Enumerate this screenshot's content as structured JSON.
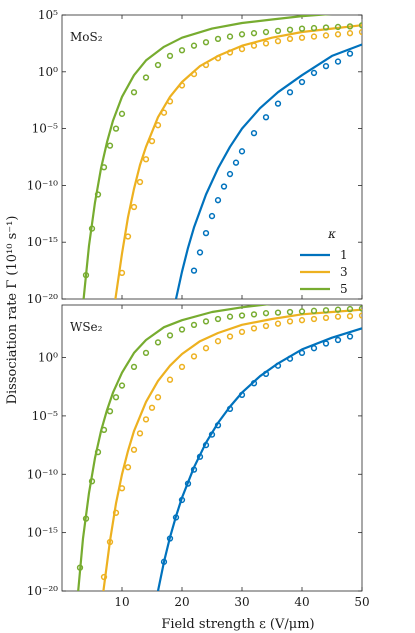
{
  "figure": {
    "ylabel": "Dissociation rate Γ (10¹⁰ s⁻¹)",
    "xlabel": "Field strength ε (V/μm)"
  },
  "chart_data": [
    {
      "type": "line",
      "panel_label": "MoS₂",
      "xlim": [
        0,
        50
      ],
      "ylim_log10": [
        -20,
        5
      ],
      "y_scale": "log",
      "x_ticks": [
        10,
        20,
        30,
        40,
        50
      ],
      "y_ticks": [
        {
          "exp": 5,
          "label": "10⁵"
        },
        {
          "exp": 0,
          "label": "10⁰"
        },
        {
          "exp": -5,
          "label": "10⁻⁵"
        },
        {
          "exp": -10,
          "label": "10⁻¹⁰"
        },
        {
          "exp": -15,
          "label": "10⁻¹⁵"
        },
        {
          "exp": -20,
          "label": "10⁻²⁰"
        }
      ],
      "legend": {
        "title": "κ",
        "placement": "lower-right",
        "entries": [
          "1",
          "3",
          "5"
        ]
      },
      "series": [
        {
          "name": "1",
          "color": "#0072bd",
          "line": {
            "x": [
              19.0,
              20,
              21,
              22,
              24,
              26,
              28,
              30,
              33,
              36,
              40,
              45,
              50
            ],
            "log10y": [
              -20.0,
              -17.6,
              -15.5,
              -13.7,
              -10.8,
              -8.5,
              -6.6,
              -5.0,
              -3.2,
              -1.8,
              -0.3,
              1.4,
              2.4
            ]
          },
          "points": {
            "x": [
              22,
              23,
              24,
              25,
              26,
              27,
              28,
              29,
              30,
              32,
              34,
              36,
              38,
              40,
              42,
              44,
              46,
              48
            ],
            "log10y": [
              -17.5,
              -15.9,
              -14.2,
              -12.7,
              -11.3,
              -10.1,
              -9.0,
              -8.0,
              -7.0,
              -5.4,
              -4.0,
              -2.8,
              -1.8,
              -0.9,
              -0.1,
              0.5,
              0.9,
              1.6
            ]
          }
        },
        {
          "name": "3",
          "color": "#edb120",
          "line": {
            "x": [
              8.9,
              10,
              11,
              12,
              13,
              14,
              16,
              18,
              20,
              23,
              26,
              30,
              35,
              40,
              45,
              50
            ],
            "log10y": [
              -20.0,
              -16.0,
              -12.8,
              -10.3,
              -8.2,
              -6.6,
              -4.0,
              -2.2,
              -0.9,
              0.5,
              1.4,
              2.3,
              3.0,
              3.5,
              3.8,
              4.1
            ]
          },
          "points": {
            "x": [
              10,
              11,
              12,
              13,
              14,
              15,
              16,
              17,
              18,
              20,
              22,
              24,
              26,
              28,
              30,
              32,
              34,
              36,
              38,
              40,
              42,
              44,
              46,
              48,
              50
            ],
            "log10y": [
              -17.7,
              -14.5,
              -11.9,
              -9.7,
              -7.7,
              -6.1,
              -4.7,
              -3.6,
              -2.6,
              -1.2,
              -0.2,
              0.6,
              1.2,
              1.7,
              2.0,
              2.3,
              2.5,
              2.7,
              2.9,
              3.0,
              3.1,
              3.2,
              3.3,
              3.4,
              3.5
            ]
          }
        },
        {
          "name": "5",
          "color": "#77ac30",
          "line": {
            "x": [
              3.6,
              4.5,
              5.5,
              6.5,
              7.5,
              8.5,
              10,
              12,
              14,
              17,
              20,
              25,
              30,
              35,
              40,
              45,
              50
            ],
            "log10y": [
              -20.0,
              -15.3,
              -11.5,
              -8.5,
              -6.2,
              -4.3,
              -2.2,
              -0.3,
              1.0,
              2.2,
              3.0,
              3.8,
              4.3,
              4.6,
              4.9,
              5.1,
              5.3
            ]
          },
          "points": {
            "x": [
              4,
              5,
              6,
              7,
              8,
              9,
              10,
              12,
              14,
              16,
              18,
              20,
              22,
              24,
              26,
              28,
              30,
              32,
              34,
              36,
              38,
              40,
              42,
              44,
              46,
              48,
              50
            ],
            "log10y": [
              -17.9,
              -13.8,
              -10.8,
              -8.4,
              -6.5,
              -5.0,
              -3.7,
              -1.8,
              -0.5,
              0.6,
              1.4,
              1.9,
              2.3,
              2.6,
              2.9,
              3.1,
              3.3,
              3.4,
              3.5,
              3.6,
              3.7,
              3.8,
              3.85,
              3.9,
              3.95,
              4.0,
              4.1
            ]
          }
        }
      ]
    },
    {
      "type": "line",
      "panel_label": "WSe₂",
      "xlim": [
        0,
        50
      ],
      "ylim_log10": [
        -20,
        4.5
      ],
      "y_scale": "log",
      "x_ticks": [
        10,
        20,
        30,
        40,
        50
      ],
      "x_tick_labels": [
        "10",
        "20",
        "30",
        "40",
        "50"
      ],
      "y_ticks": [
        {
          "exp": 0,
          "label": "10⁰"
        },
        {
          "exp": -5,
          "label": "10⁻⁵"
        },
        {
          "exp": -10,
          "label": "10⁻¹⁰"
        },
        {
          "exp": -15,
          "label": "10⁻¹⁵"
        },
        {
          "exp": -20,
          "label": "10⁻²⁰"
        }
      ],
      "series": [
        {
          "name": "1",
          "color": "#0072bd",
          "line": {
            "x": [
              16.0,
              17,
              18,
              19,
              20,
              22,
              24,
              26,
              28,
              30,
              33,
              36,
              40,
              45,
              50
            ],
            "log10y": [
              -20.0,
              -17.5,
              -15.4,
              -13.6,
              -12.0,
              -9.4,
              -7.3,
              -5.6,
              -4.2,
              -3.0,
              -1.6,
              -0.5,
              0.7,
              1.7,
              2.5
            ]
          },
          "points": {
            "x": [
              17,
              18,
              19,
              20,
              21,
              22,
              23,
              24,
              25,
              26,
              28,
              30,
              32,
              34,
              36,
              38,
              40,
              42,
              44,
              46,
              48
            ],
            "log10y": [
              -17.5,
              -15.5,
              -13.7,
              -12.2,
              -10.8,
              -9.6,
              -8.5,
              -7.5,
              -6.6,
              -5.8,
              -4.4,
              -3.2,
              -2.2,
              -1.4,
              -0.7,
              -0.1,
              0.4,
              0.8,
              1.2,
              1.5,
              1.8
            ]
          }
        },
        {
          "name": "3",
          "color": "#edb120",
          "line": {
            "x": [
              6.9,
              8,
              9,
              10,
              11,
              12,
              14,
              16,
              18,
              20,
              23,
              26,
              30,
              35,
              40,
              45,
              50
            ],
            "log10y": [
              -20.0,
              -15.7,
              -12.5,
              -10.0,
              -8.0,
              -6.3,
              -3.8,
              -2.0,
              -0.7,
              0.3,
              1.4,
              2.1,
              2.8,
              3.3,
              3.7,
              3.9,
              4.1
            ]
          },
          "points": {
            "x": [
              7,
              8,
              9,
              10,
              11,
              12,
              13,
              14,
              15,
              16,
              18,
              20,
              22,
              24,
              26,
              28,
              30,
              32,
              34,
              36,
              38,
              40,
              42,
              44,
              46,
              48,
              50
            ],
            "log10y": [
              -18.8,
              -15.8,
              -13.3,
              -11.2,
              -9.4,
              -7.9,
              -6.5,
              -5.3,
              -4.3,
              -3.4,
              -1.9,
              -0.8,
              0.1,
              0.8,
              1.4,
              1.8,
              2.2,
              2.5,
              2.7,
              2.9,
              3.1,
              3.2,
              3.3,
              3.4,
              3.5,
              3.55,
              3.6
            ]
          }
        },
        {
          "name": "5",
          "color": "#77ac30",
          "line": {
            "x": [
              2.7,
              3.5,
              4.5,
              5.5,
              6.5,
              7.5,
              8.5,
              10,
              12,
              14,
              17,
              20,
              25,
              30,
              35,
              40,
              45,
              50
            ],
            "log10y": [
              -20.0,
              -15.5,
              -11.6,
              -8.6,
              -6.3,
              -4.5,
              -3.0,
              -1.3,
              0.4,
              1.5,
              2.6,
              3.2,
              3.9,
              4.3,
              4.6,
              4.8,
              4.95,
              5.1
            ]
          },
          "points": {
            "x": [
              3,
              4,
              5,
              6,
              7,
              8,
              9,
              10,
              12,
              14,
              16,
              18,
              20,
              22,
              24,
              26,
              28,
              30,
              32,
              34,
              36,
              38,
              40,
              42,
              44,
              46,
              48,
              50
            ],
            "log10y": [
              -18.0,
              -13.8,
              -10.6,
              -8.1,
              -6.2,
              -4.6,
              -3.4,
              -2.4,
              -0.8,
              0.4,
              1.3,
              1.9,
              2.4,
              2.8,
              3.1,
              3.3,
              3.5,
              3.6,
              3.7,
              3.8,
              3.85,
              3.9,
              3.95,
              4.0,
              4.05,
              4.1,
              4.15,
              4.2
            ]
          }
        }
      ]
    }
  ]
}
